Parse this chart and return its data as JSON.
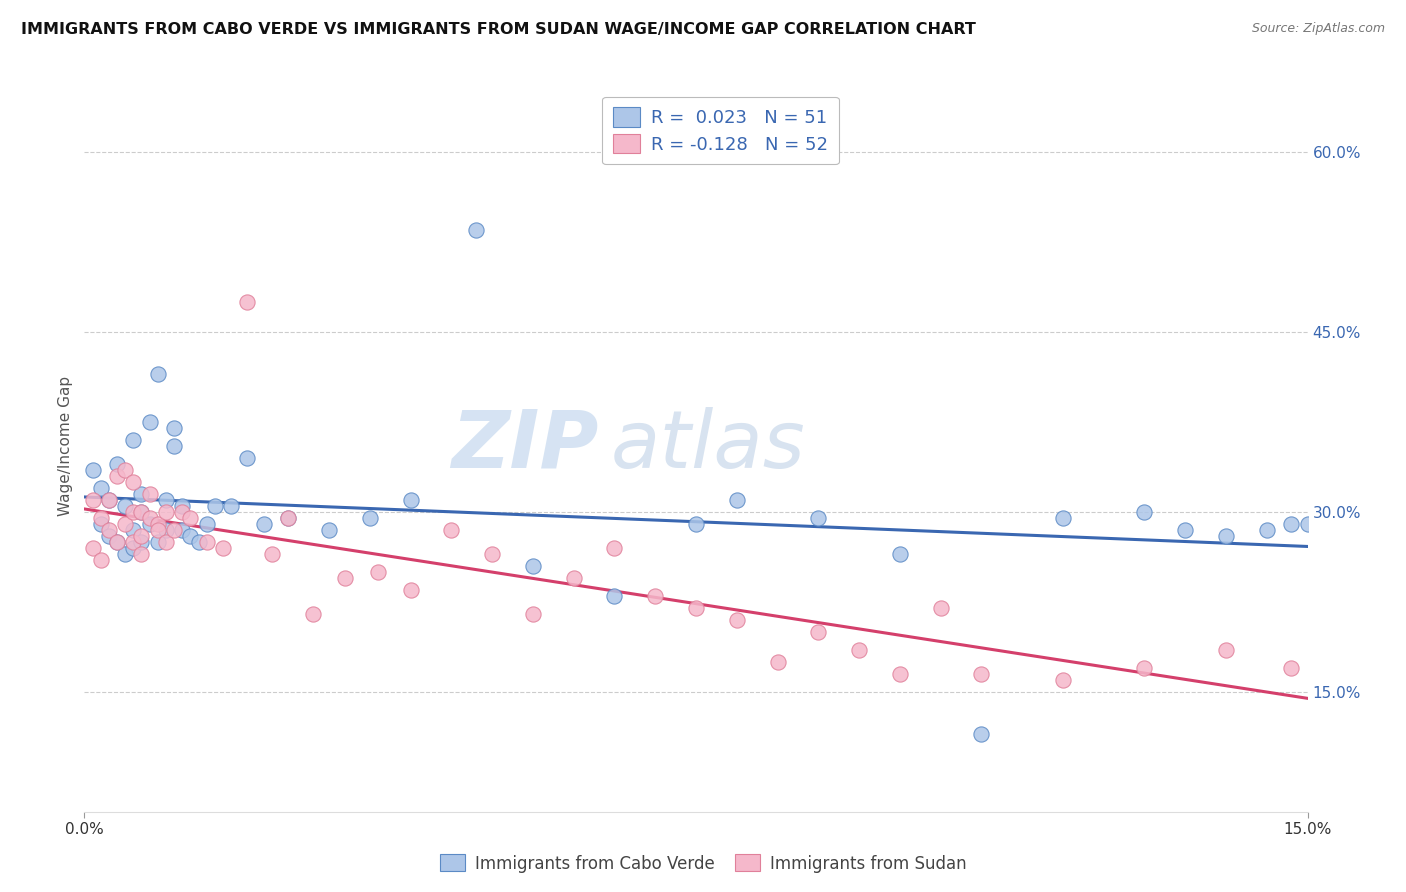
{
  "title": "IMMIGRANTS FROM CABO VERDE VS IMMIGRANTS FROM SUDAN WAGE/INCOME GAP CORRELATION CHART",
  "source": "Source: ZipAtlas.com",
  "ylabel": "Wage/Income Gap",
  "y_ticks": [
    0.15,
    0.3,
    0.45,
    0.6
  ],
  "y_tick_labels": [
    "15.0%",
    "30.0%",
    "45.0%",
    "60.0%"
  ],
  "x_range": [
    0.0,
    0.15
  ],
  "y_range": [
    0.05,
    0.66
  ],
  "cabo_verde_R": "0.023",
  "cabo_verde_N": "51",
  "sudan_R": "-0.128",
  "sudan_N": "52",
  "cabo_verde_color": "#adc6e8",
  "sudan_color": "#f5b8cb",
  "cabo_verde_edge_color": "#5b8ac5",
  "sudan_edge_color": "#e0809a",
  "cabo_verde_line_color": "#3a67b1",
  "sudan_line_color": "#d43f6b",
  "legend_label_1": "Immigrants from Cabo Verde",
  "legend_label_2": "Immigrants from Sudan",
  "watermark_zip": "ZIP",
  "watermark_atlas": "atlas",
  "cabo_verde_x": [
    0.001,
    0.002,
    0.002,
    0.003,
    0.003,
    0.004,
    0.004,
    0.005,
    0.005,
    0.006,
    0.006,
    0.006,
    0.007,
    0.007,
    0.007,
    0.008,
    0.008,
    0.009,
    0.009,
    0.01,
    0.01,
    0.011,
    0.011,
    0.012,
    0.012,
    0.013,
    0.014,
    0.015,
    0.016,
    0.018,
    0.02,
    0.022,
    0.025,
    0.03,
    0.035,
    0.04,
    0.048,
    0.055,
    0.065,
    0.075,
    0.08,
    0.09,
    0.1,
    0.11,
    0.12,
    0.13,
    0.135,
    0.14,
    0.145,
    0.148,
    0.15
  ],
  "cabo_verde_y": [
    0.335,
    0.32,
    0.29,
    0.31,
    0.28,
    0.34,
    0.275,
    0.305,
    0.265,
    0.36,
    0.285,
    0.27,
    0.315,
    0.3,
    0.275,
    0.375,
    0.29,
    0.415,
    0.275,
    0.31,
    0.285,
    0.355,
    0.37,
    0.305,
    0.285,
    0.28,
    0.275,
    0.29,
    0.305,
    0.305,
    0.345,
    0.29,
    0.295,
    0.285,
    0.295,
    0.31,
    0.535,
    0.255,
    0.23,
    0.29,
    0.31,
    0.295,
    0.265,
    0.115,
    0.295,
    0.3,
    0.285,
    0.28,
    0.285,
    0.29,
    0.29
  ],
  "sudan_x": [
    0.001,
    0.001,
    0.002,
    0.002,
    0.003,
    0.003,
    0.004,
    0.004,
    0.005,
    0.005,
    0.006,
    0.006,
    0.006,
    0.007,
    0.007,
    0.007,
    0.008,
    0.008,
    0.009,
    0.009,
    0.01,
    0.01,
    0.011,
    0.012,
    0.013,
    0.015,
    0.017,
    0.02,
    0.023,
    0.025,
    0.028,
    0.032,
    0.036,
    0.04,
    0.045,
    0.05,
    0.055,
    0.06,
    0.065,
    0.07,
    0.075,
    0.08,
    0.085,
    0.09,
    0.095,
    0.1,
    0.105,
    0.11,
    0.12,
    0.13,
    0.14,
    0.148
  ],
  "sudan_y": [
    0.31,
    0.27,
    0.295,
    0.26,
    0.31,
    0.285,
    0.33,
    0.275,
    0.335,
    0.29,
    0.3,
    0.275,
    0.325,
    0.3,
    0.28,
    0.265,
    0.315,
    0.295,
    0.29,
    0.285,
    0.275,
    0.3,
    0.285,
    0.3,
    0.295,
    0.275,
    0.27,
    0.475,
    0.265,
    0.295,
    0.215,
    0.245,
    0.25,
    0.235,
    0.285,
    0.265,
    0.215,
    0.245,
    0.27,
    0.23,
    0.22,
    0.21,
    0.175,
    0.2,
    0.185,
    0.165,
    0.22,
    0.165,
    0.16,
    0.17,
    0.185,
    0.17
  ]
}
